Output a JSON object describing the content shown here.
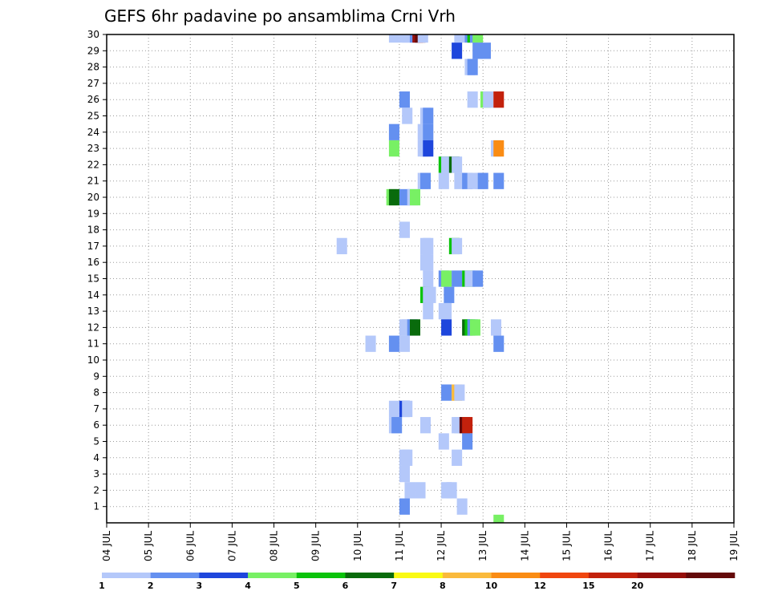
{
  "chart_data": {
    "type": "heatmap",
    "title": "GEFS 6hr padavine po ansamblima Crni Vrh",
    "xlabel": "",
    "ylabel": "",
    "x_tick_labels": [
      "04 JUL",
      "05 JUL",
      "06 JUL",
      "07 JUL",
      "08 JUL",
      "09 JUL",
      "10 JUL",
      "11 JUL",
      "12 JUL",
      "13 JUL",
      "14 JUL",
      "15 JUL",
      "16 JUL",
      "17 JUL",
      "18 JUL",
      "19 JUL"
    ],
    "y_tick_labels": [
      "1",
      "2",
      "3",
      "4",
      "5",
      "6",
      "7",
      "8",
      "9",
      "10",
      "11",
      "12",
      "13",
      "14",
      "15",
      "16",
      "17",
      "18",
      "19",
      "20",
      "21",
      "22",
      "23",
      "24",
      "25",
      "26",
      "27",
      "28",
      "29",
      "30"
    ],
    "xlim": [
      0,
      15
    ],
    "ylim": [
      0,
      30
    ],
    "steps_per_day": 4,
    "grid": true,
    "colorbar": {
      "colors": [
        "#b4c8fa",
        "#6490f0",
        "#1e46dc",
        "#78f064",
        "#0ac30a",
        "#096b0c",
        "#fafa14",
        "#faba3c",
        "#fa8c14",
        "#f0460f",
        "#c3210c",
        "#960f0a",
        "#640a0a"
      ],
      "labels": [
        "1",
        "2",
        "3",
        "4",
        "5",
        "6",
        "7",
        "8",
        "10",
        "12",
        "15",
        "20"
      ]
    },
    "cells": [
      [
        30,
        27.0,
        1
      ],
      [
        30,
        28.0,
        1
      ],
      [
        30,
        28.25,
        1
      ],
      [
        30,
        29.0,
        2
      ],
      [
        30,
        29.25,
        12
      ],
      [
        30,
        29.5,
        13
      ],
      [
        30,
        29.75,
        1
      ],
      [
        30,
        33.25,
        1
      ],
      [
        30,
        34.25,
        2
      ],
      [
        30,
        34.5,
        5
      ],
      [
        30,
        34.75,
        2
      ],
      [
        30,
        35.0,
        4
      ],
      [
        29,
        33.0,
        3
      ],
      [
        29,
        35.0,
        2
      ],
      [
        29,
        35.75,
        2
      ],
      [
        28,
        34.25,
        1
      ],
      [
        28,
        34.5,
        2
      ],
      [
        26,
        28.0,
        2
      ],
      [
        26,
        34.5,
        1
      ],
      [
        26,
        35.75,
        4
      ],
      [
        26,
        36.0,
        1
      ],
      [
        26,
        37.0,
        11
      ],
      [
        25,
        28.25,
        1
      ],
      [
        25,
        30.0,
        1
      ],
      [
        25,
        30.25,
        2
      ],
      [
        24,
        27.0,
        2
      ],
      [
        24,
        29.75,
        1
      ],
      [
        24,
        30.0,
        1
      ],
      [
        24,
        30.25,
        2
      ],
      [
        23,
        27.0,
        4
      ],
      [
        23,
        29.75,
        1
      ],
      [
        23,
        30.0,
        1
      ],
      [
        23,
        30.25,
        3
      ],
      [
        23,
        36.75,
        1
      ],
      [
        23,
        37.0,
        9
      ],
      [
        22,
        31.75,
        5
      ],
      [
        22,
        32.0,
        1
      ],
      [
        22,
        32.75,
        6
      ],
      [
        22,
        33.0,
        1
      ],
      [
        21,
        29.75,
        1
      ],
      [
        21,
        30.0,
        2
      ],
      [
        21,
        31.75,
        1
      ],
      [
        21,
        33.25,
        1
      ],
      [
        21,
        34.0,
        2
      ],
      [
        21,
        34.5,
        1
      ],
      [
        21,
        35.25,
        1
      ],
      [
        21,
        35.5,
        2
      ],
      [
        21,
        37.0,
        2
      ],
      [
        20,
        26.75,
        4
      ],
      [
        20,
        27.0,
        6
      ],
      [
        20,
        28.0,
        2
      ],
      [
        20,
        28.75,
        1
      ],
      [
        20,
        29.0,
        4
      ],
      [
        18,
        28.0,
        1
      ],
      [
        17,
        22.0,
        1
      ],
      [
        17,
        30.0,
        1
      ],
      [
        17,
        30.25,
        1
      ],
      [
        17,
        32.75,
        5
      ],
      [
        17,
        33.0,
        1
      ],
      [
        16,
        30.0,
        1
      ],
      [
        16,
        30.25,
        1
      ],
      [
        15,
        30.25,
        1
      ],
      [
        15,
        31.75,
        2
      ],
      [
        15,
        32.0,
        4
      ],
      [
        15,
        33.0,
        2
      ],
      [
        15,
        34.0,
        5
      ],
      [
        15,
        34.25,
        1
      ],
      [
        15,
        35.0,
        2
      ],
      [
        14,
        30.0,
        5
      ],
      [
        14,
        30.25,
        1
      ],
      [
        14,
        30.5,
        1
      ],
      [
        14,
        32.25,
        2
      ],
      [
        13,
        30.25,
        1
      ],
      [
        13,
        31.75,
        1
      ],
      [
        13,
        32.0,
        1
      ],
      [
        12,
        28.0,
        1
      ],
      [
        12,
        28.25,
        1
      ],
      [
        12,
        28.75,
        2
      ],
      [
        12,
        29.0,
        6
      ],
      [
        12,
        32.0,
        3
      ],
      [
        12,
        34.0,
        6
      ],
      [
        12,
        34.25,
        5
      ],
      [
        12,
        34.5,
        2
      ],
      [
        12,
        34.75,
        4
      ],
      [
        12,
        36.75,
        1
      ],
      [
        11,
        24.75,
        1
      ],
      [
        11,
        27.0,
        2
      ],
      [
        11,
        28.0,
        1
      ],
      [
        11,
        37.0,
        2
      ],
      [
        8,
        32.0,
        2
      ],
      [
        8,
        33.0,
        8
      ],
      [
        8,
        33.25,
        1
      ],
      [
        7,
        27.0,
        1
      ],
      [
        7,
        28.0,
        3
      ],
      [
        7,
        28.25,
        1
      ],
      [
        6,
        27.0,
        1
      ],
      [
        6,
        27.25,
        2
      ],
      [
        6,
        30.0,
        1
      ],
      [
        6,
        33.0,
        1
      ],
      [
        6,
        33.25,
        1
      ],
      [
        6,
        33.75,
        13
      ],
      [
        6,
        34.0,
        11
      ],
      [
        5,
        31.75,
        1
      ],
      [
        5,
        34.0,
        2
      ],
      [
        4,
        28.0,
        1
      ],
      [
        4,
        28.25,
        1
      ],
      [
        4,
        33.0,
        1
      ],
      [
        3,
        28.0,
        1
      ],
      [
        2,
        28.5,
        1
      ],
      [
        2,
        29.5,
        1
      ],
      [
        2,
        32.0,
        1
      ],
      [
        2,
        32.5,
        1
      ],
      [
        1,
        28.0,
        2
      ],
      [
        1,
        33.5,
        1
      ],
      [
        0,
        37.0,
        4
      ]
    ]
  }
}
